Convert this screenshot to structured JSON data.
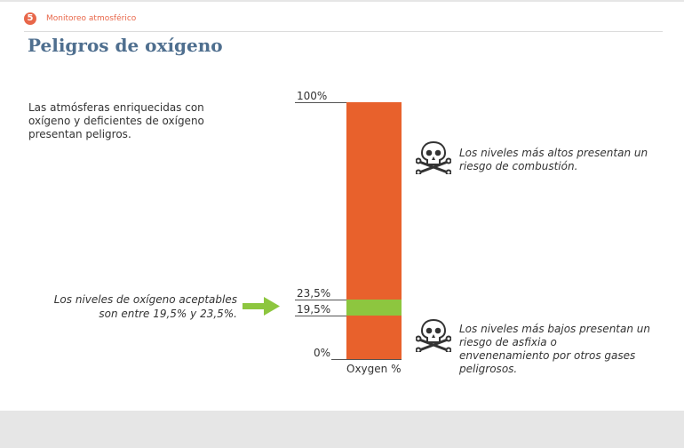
{
  "header": {
    "section_number": "5",
    "section_label": "Monitoreo atmosférico",
    "accent_color": "#e8674a"
  },
  "page": {
    "title": "Peligros de oxígeno",
    "intro": "Las atmósferas enriquecidas con oxígeno y deficientes de oxígeno presentan peligros.",
    "acceptable_note": "Los niveles de oxígeno aceptables son entre 19,5% y 23,5%.",
    "arrow_icon": "right-arrow-icon",
    "arrow_color": "#8dc63f"
  },
  "diagram": {
    "ticks": [
      {
        "value": 100,
        "label": "100%"
      },
      {
        "value": 23.5,
        "label": "23,5%"
      },
      {
        "value": 19.5,
        "label": "19,5%"
      },
      {
        "value": 0,
        "label": "0%"
      }
    ],
    "segments": [
      {
        "from": 23.5,
        "to": 100,
        "color": "#e8612c"
      },
      {
        "from": 19.5,
        "to": 23.5,
        "color": "#8dc63f"
      },
      {
        "from": 0,
        "to": 19.5,
        "color": "#e8612c"
      }
    ],
    "x_label": "Oxygen %"
  },
  "hazards": {
    "high": {
      "icon": "skull-crossbones-icon",
      "text": "Los niveles más altos presentan un riesgo de combustión."
    },
    "low": {
      "icon": "skull-crossbones-icon",
      "text": "Los niveles más bajos presentan un riesgo de asfixia o envenenamiento por otros gases peligrosos."
    }
  }
}
